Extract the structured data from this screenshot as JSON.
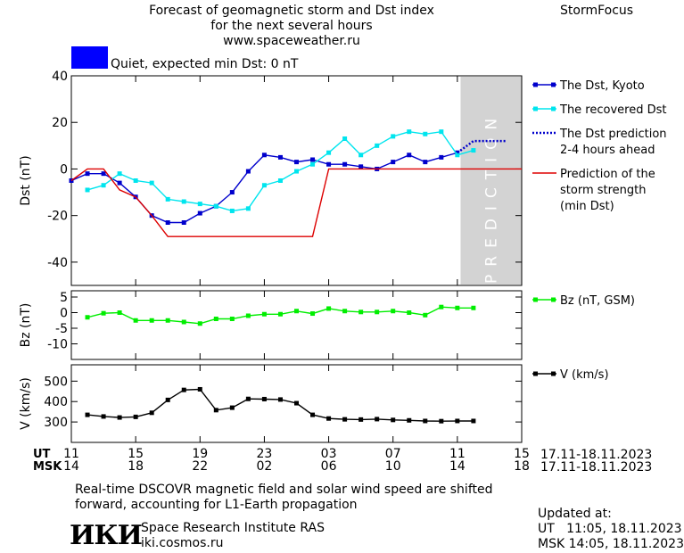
{
  "header": {
    "title_line1": "Forecast of geomagnetic storm and Dst index",
    "title_line2": "for the next several hours",
    "url": "www.spaceweather.ru",
    "brand": "StormFocus",
    "status_text": "Quiet, expected min Dst: 0 nT",
    "status_color": "#0000ff"
  },
  "prediction_label": "PREDICTION",
  "time_axis": {
    "ut_label": "UT",
    "msk_label": "MSK",
    "ut_ticks": [
      "11",
      "15",
      "19",
      "23",
      "03",
      "07",
      "11",
      "15"
    ],
    "msk_ticks": [
      "14",
      "18",
      "22",
      "02",
      "06",
      "10",
      "14",
      "18"
    ],
    "ut_range": "17.11-18.11.2023",
    "msk_range": "17.11-18.11.2023",
    "tick_hours_ut": [
      11,
      15,
      19,
      23,
      27,
      31,
      35,
      39
    ],
    "x_range_hours_ut": [
      11,
      39
    ],
    "prediction_start_hour_ut": 35.2
  },
  "chart_data": [
    {
      "type": "line",
      "panel": "dst",
      "ylabel": "Dst (nT)",
      "ylim": [
        -50,
        40
      ],
      "yticks": [
        40,
        20,
        0,
        -20,
        -40
      ],
      "series": [
        {
          "name": "The Dst, Kyoto",
          "color": "#0000cc",
          "style": "solid-square",
          "x": [
            11,
            12,
            13,
            14,
            15,
            16,
            17,
            18,
            19,
            20,
            21,
            22,
            23,
            24,
            25,
            26,
            27,
            28,
            29,
            30,
            31,
            32,
            33,
            34,
            35
          ],
          "values": [
            -5,
            -2,
            -2,
            -6,
            -12,
            -20,
            -23,
            -23,
            -19,
            -16,
            -10,
            -1,
            6,
            5,
            3,
            4,
            2,
            2,
            1,
            0,
            3,
            6,
            3,
            5,
            7
          ]
        },
        {
          "name": "The recovered Dst",
          "color": "#00e5ee",
          "style": "solid-square",
          "x": [
            12,
            13,
            14,
            15,
            16,
            17,
            18,
            19,
            20,
            21,
            22,
            23,
            24,
            25,
            26,
            27,
            28,
            29,
            30,
            31,
            32,
            33,
            34,
            35,
            36
          ],
          "values": [
            -9,
            -7,
            -2,
            -5,
            -6,
            -13,
            -14,
            -15,
            -16,
            -18,
            -17,
            -7,
            -5,
            -1,
            2,
            7,
            13,
            6,
            10,
            14,
            16,
            15,
            16,
            6,
            8
          ]
        },
        {
          "name": "The Dst prediction 2-4 hours ahead",
          "color": "#0000cc",
          "style": "dotted",
          "x": [
            35,
            36,
            37,
            38
          ],
          "values": [
            7,
            12,
            12,
            12
          ]
        },
        {
          "name": "Prediction of the storm strength (min Dst)",
          "color": "#dd0000",
          "style": "solid",
          "x": [
            11,
            12,
            13,
            14,
            15,
            16,
            17,
            18,
            19,
            20,
            21,
            22,
            23,
            24,
            25,
            26,
            27,
            28,
            29,
            30,
            31,
            32,
            33,
            34,
            35,
            36,
            37,
            38,
            39
          ],
          "values": [
            -5,
            0,
            0,
            -9,
            -12,
            -20,
            -29,
            -29,
            -29,
            -29,
            -29,
            -29,
            -29,
            -29,
            -29,
            -29,
            0,
            0,
            0,
            0,
            0,
            0,
            0,
            0,
            0,
            0,
            0,
            0,
            0
          ]
        }
      ],
      "legend": [
        {
          "label": "The Dst, Kyoto",
          "color": "#0000cc",
          "style": "solid-square"
        },
        {
          "label": "The recovered Dst",
          "color": "#00e5ee",
          "style": "solid-square"
        },
        {
          "label": "The Dst prediction\n2-4 hours ahead",
          "color": "#0000cc",
          "style": "dotted"
        },
        {
          "label": "Prediction of the\nstorm strength\n(min Dst)",
          "color": "#dd0000",
          "style": "solid"
        }
      ]
    },
    {
      "type": "line",
      "panel": "bz",
      "ylabel": "Bz (nT)",
      "ylim": [
        -15,
        7
      ],
      "yticks": [
        5,
        0,
        -5,
        -10
      ],
      "series": [
        {
          "name": "Bz (nT, GSM)",
          "color": "#00ee00",
          "style": "solid-square",
          "x": [
            12,
            13,
            14,
            15,
            16,
            17,
            18,
            19,
            20,
            21,
            22,
            23,
            24,
            25,
            26,
            27,
            28,
            29,
            30,
            31,
            32,
            33,
            34,
            35,
            36
          ],
          "values": [
            -1.5,
            -0.2,
            0,
            -2.5,
            -2.5,
            -2.5,
            -3,
            -3.5,
            -2,
            -2,
            -1,
            -0.5,
            -0.5,
            0.5,
            -0.3,
            1.3,
            0.5,
            0.2,
            0.2,
            0.5,
            0,
            -0.8,
            1.8,
            1.5,
            1.5
          ]
        }
      ],
      "legend": [
        {
          "label": "Bz (nT, GSM)",
          "color": "#00ee00",
          "style": "solid-square"
        }
      ]
    },
    {
      "type": "line",
      "panel": "v",
      "ylabel": "V (km/s)",
      "ylim": [
        200,
        580
      ],
      "yticks": [
        500,
        400,
        300
      ],
      "series": [
        {
          "name": "V (km/s)",
          "color": "#000000",
          "style": "solid-square",
          "x": [
            12,
            13,
            14,
            15,
            16,
            17,
            18,
            19,
            20,
            21,
            22,
            23,
            24,
            25,
            26,
            27,
            28,
            29,
            30,
            31,
            32,
            33,
            34,
            35,
            36
          ],
          "values": [
            335,
            327,
            322,
            325,
            345,
            408,
            457,
            460,
            358,
            370,
            413,
            412,
            410,
            392,
            335,
            317,
            313,
            312,
            314,
            310,
            308,
            305,
            304,
            305,
            305
          ]
        }
      ],
      "legend": [
        {
          "label": "V (km/s)",
          "color": "#000000",
          "style": "solid-square"
        }
      ]
    }
  ],
  "footer": {
    "note_line1": "Real-time DSCOVR magnetic field and solar wind speed are shifted",
    "note_line2": "forward, accounting for L1-Earth propagation",
    "logo": "ИКИ",
    "institute": "Space Research Institute RAS",
    "site": "iki.cosmos.ru",
    "updated_label": "Updated at:",
    "updated_ut": "UT   11:05, 18.11.2023",
    "updated_msk": "MSK 14:05, 18.11.2023"
  }
}
